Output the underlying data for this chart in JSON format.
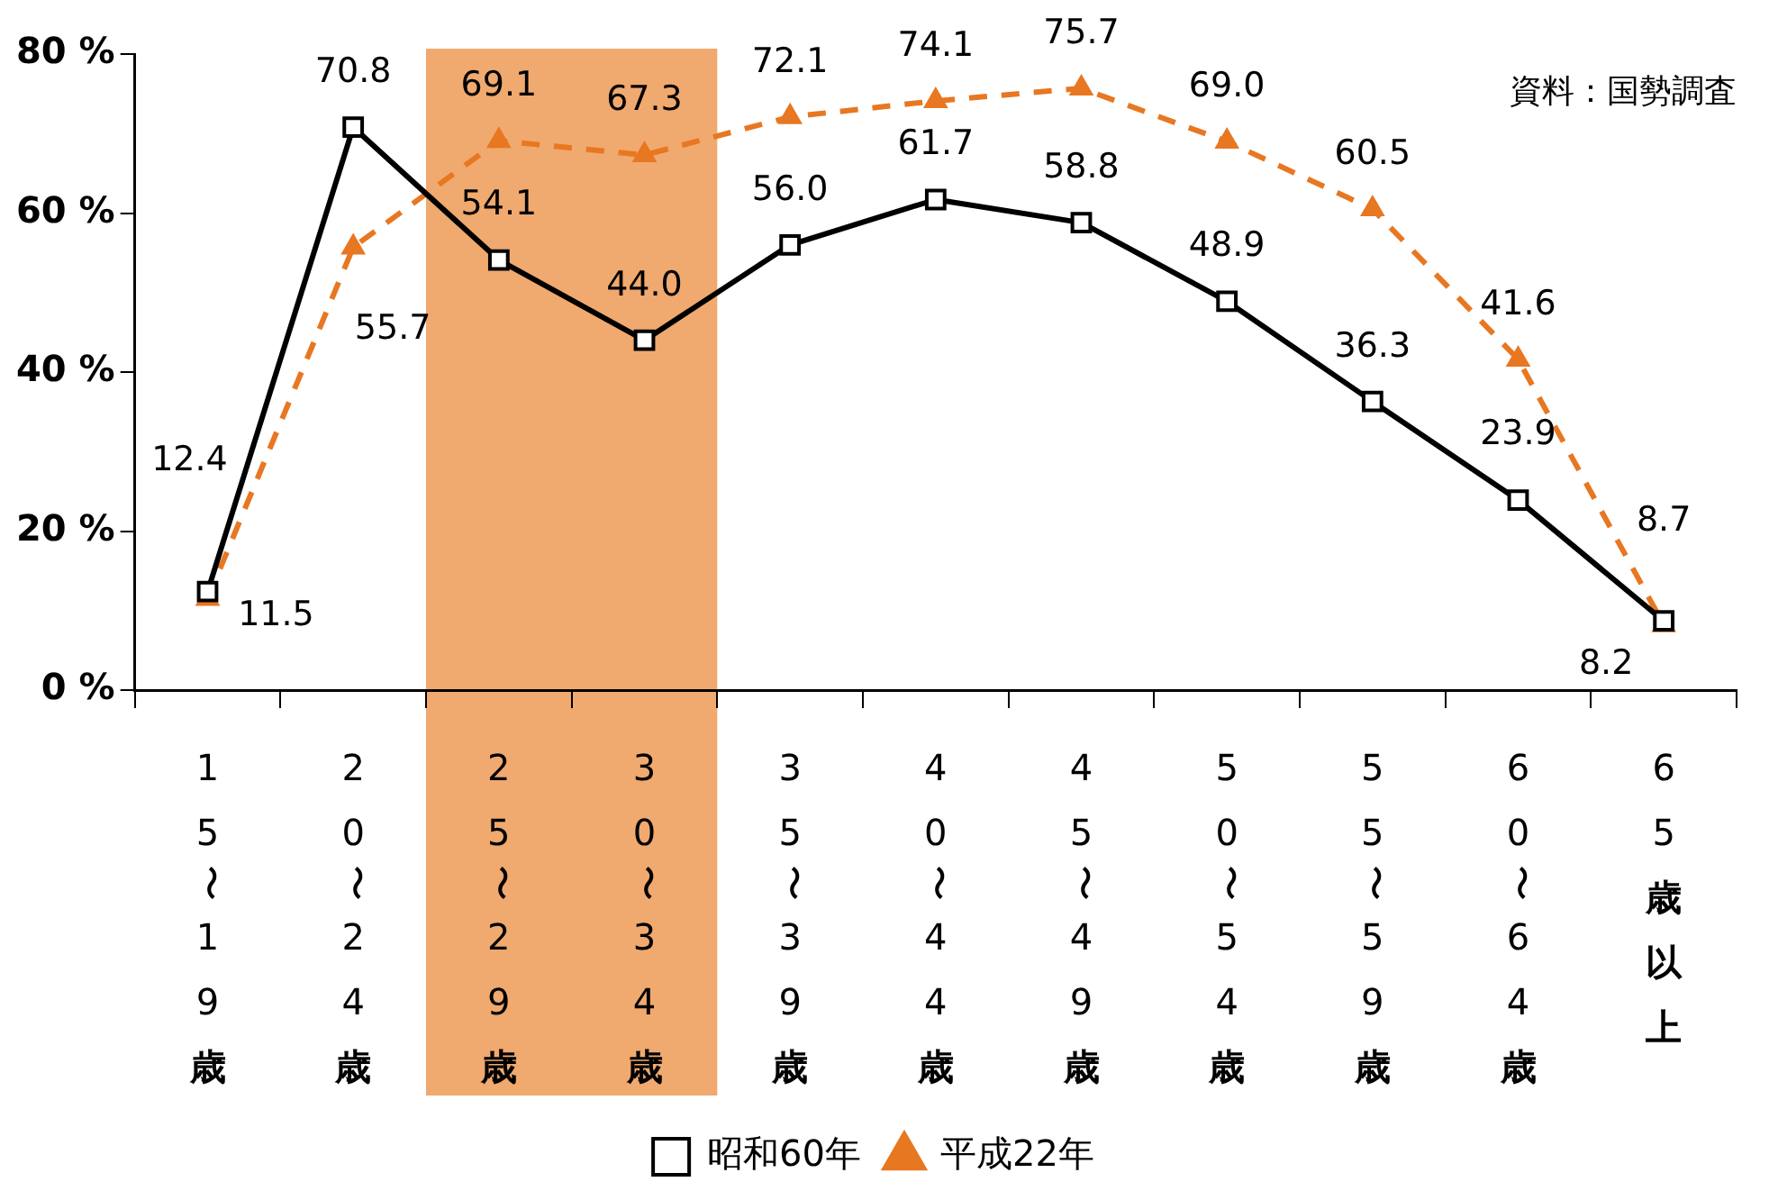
{
  "chart_data": {
    "type": "line",
    "categories": [
      "15〜19歳",
      "20〜24歳",
      "25〜29歳",
      "30〜34歳",
      "35〜39歳",
      "40〜44歳",
      "45〜49歳",
      "50〜54歳",
      "55〜59歳",
      "60〜64歳",
      "65歳以上"
    ],
    "series": [
      {
        "name": "昭和60年",
        "color": "#000000",
        "marker": "square",
        "line_style": "solid",
        "values": [
          12.4,
          70.8,
          54.1,
          44.0,
          56.0,
          61.7,
          58.8,
          48.9,
          36.3,
          23.9,
          8.7
        ],
        "value_labels": [
          "12.4",
          "70.8",
          "54.1",
          "44.0",
          "56.0",
          "61.7",
          "58.8",
          "48.9",
          "36.3",
          "23.9",
          "8.7"
        ]
      },
      {
        "name": "平成22年",
        "color": "#e87722",
        "marker": "triangle",
        "line_style": "dashed",
        "values": [
          11.5,
          55.7,
          69.1,
          67.3,
          72.1,
          74.1,
          75.7,
          69.0,
          60.5,
          41.6,
          8.2
        ],
        "value_labels": [
          "11.5",
          "55.7",
          "69.1",
          "67.3",
          "72.1",
          "74.1",
          "75.7",
          "69.0",
          "60.5",
          "41.6",
          "8.2"
        ]
      }
    ],
    "ylim": [
      0,
      80
    ],
    "yticks": [
      {
        "value": 0,
        "label": "0 %"
      },
      {
        "value": 20,
        "label": "20 %"
      },
      {
        "value": 40,
        "label": "40 %"
      },
      {
        "value": 60,
        "label": "60 %"
      },
      {
        "value": 80,
        "label": "80 %"
      }
    ],
    "bands": [
      {
        "axis": "x",
        "from": "25〜29歳",
        "to": "30〜34歳",
        "color": "#f0a96e"
      }
    ],
    "annotations": [
      "資料：国勢調査"
    ],
    "grid": false,
    "legend": "bottom"
  }
}
